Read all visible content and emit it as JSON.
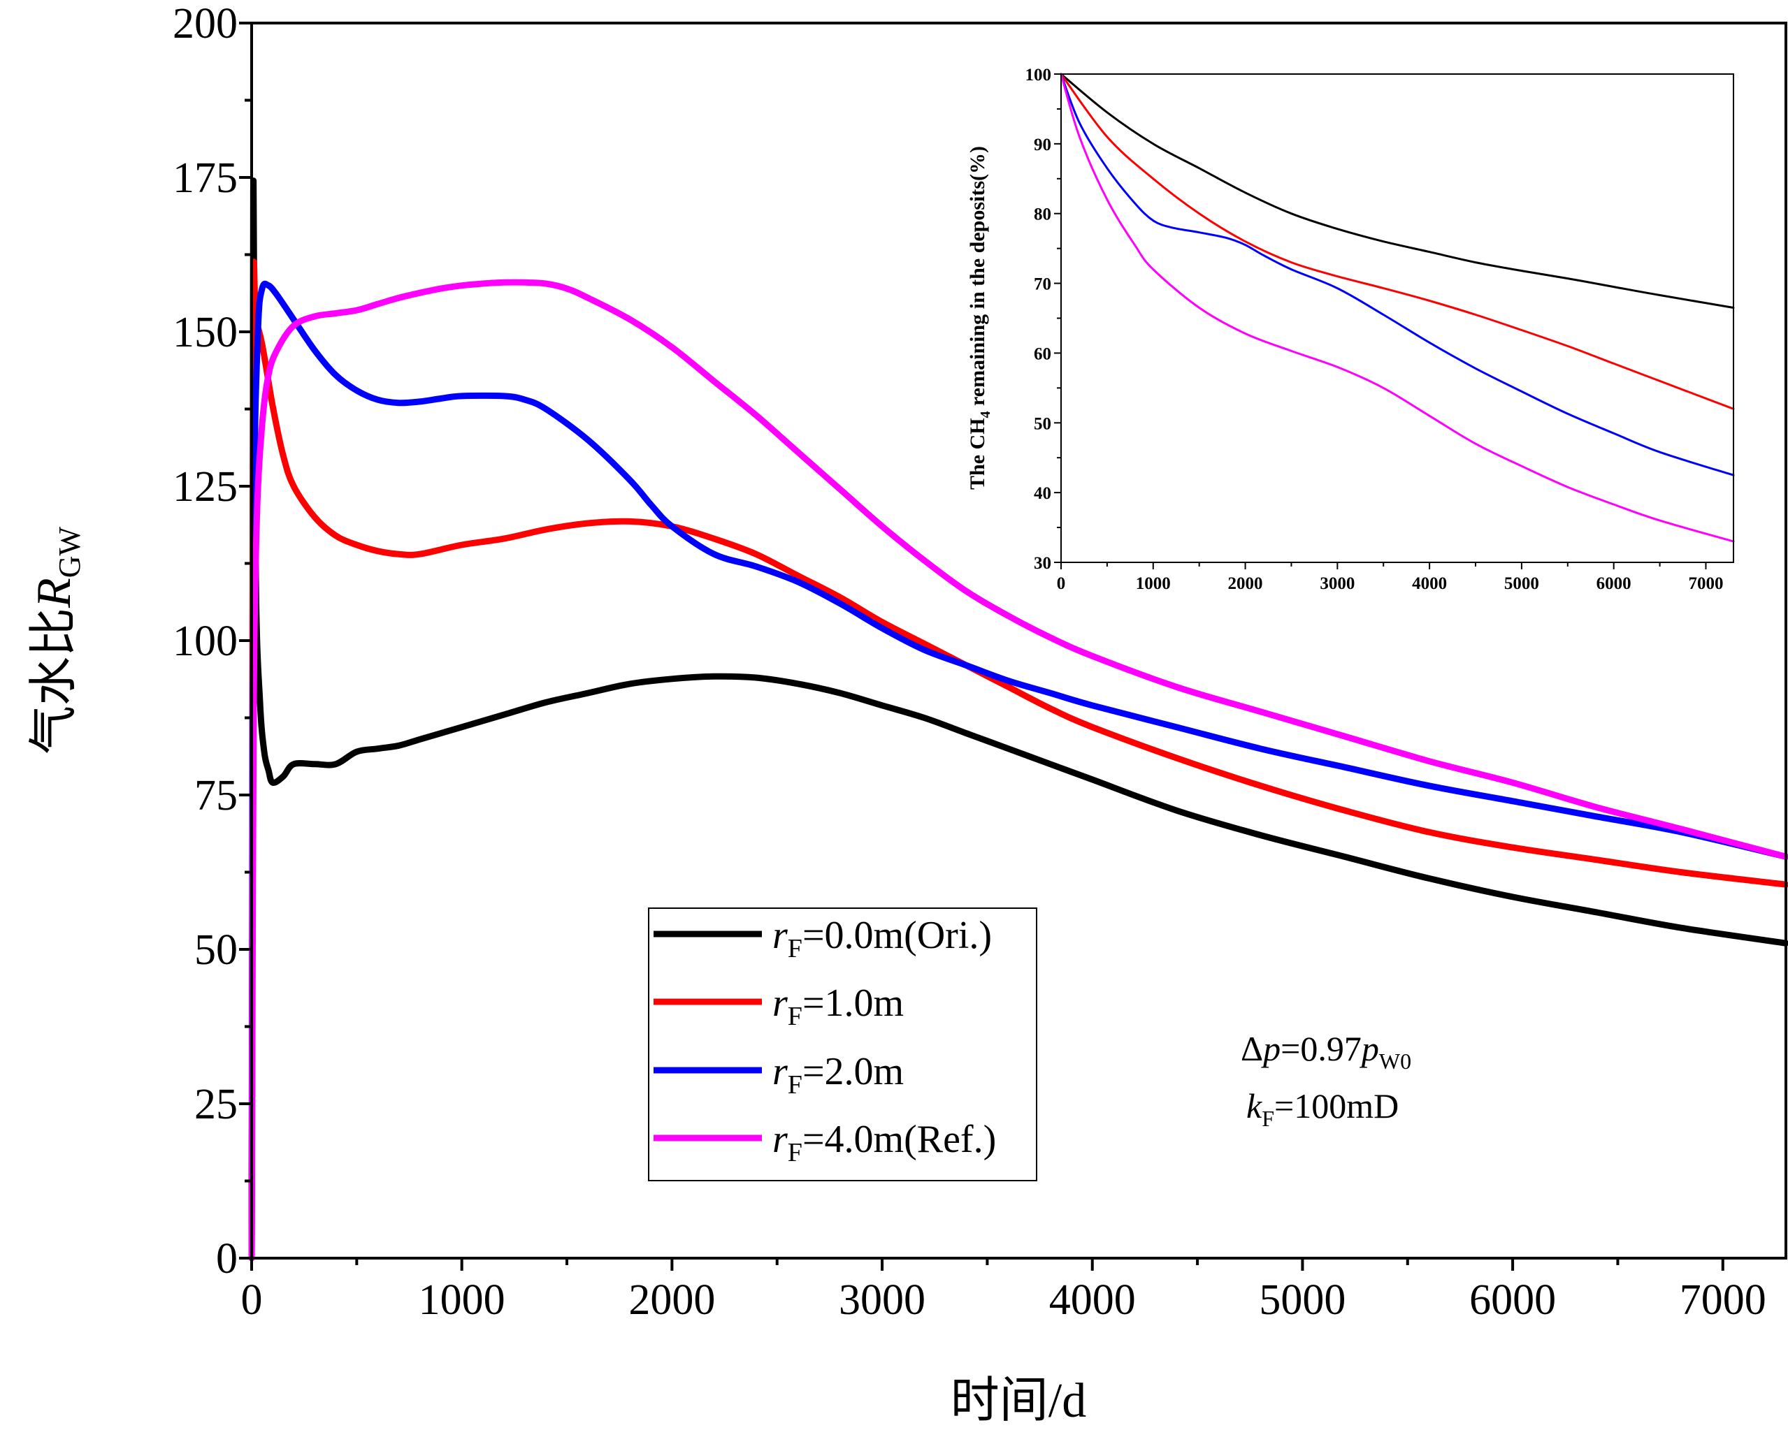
{
  "chart_data": [
    {
      "id": "main",
      "type": "line",
      "xlabel": "时间/d",
      "ylabel_main": "气水比",
      "ylabel_var": "R",
      "ylabel_sub": "GW",
      "xlim": [
        0,
        7300
      ],
      "ylim": [
        0,
        200
      ],
      "xticks": [
        0,
        1000,
        2000,
        3000,
        4000,
        5000,
        6000,
        7000
      ],
      "yticks": [
        0,
        25,
        50,
        75,
        100,
        125,
        150,
        175,
        200
      ],
      "legend": {
        "placement": "bottom-center"
      },
      "series": [
        {
          "name": "rF=0.0m(Ori.)",
          "label_var": "r",
          "label_sub": "F",
          "label_rest": "=0.0m(Ori.)",
          "color": "#000000",
          "points": [
            [
              0,
              0
            ],
            [
              3,
              40
            ],
            [
              8,
              173
            ],
            [
              20,
              110
            ],
            [
              40,
              90
            ],
            [
              60,
              82
            ],
            [
              80,
              79
            ],
            [
              100,
              77
            ],
            [
              150,
              78
            ],
            [
              200,
              80
            ],
            [
              300,
              80
            ],
            [
              400,
              80
            ],
            [
              500,
              82
            ],
            [
              600,
              82.5
            ],
            [
              700,
              83
            ],
            [
              800,
              84
            ],
            [
              1000,
              86
            ],
            [
              1200,
              88
            ],
            [
              1400,
              90
            ],
            [
              1600,
              91.5
            ],
            [
              1800,
              93
            ],
            [
              2000,
              93.8
            ],
            [
              2200,
              94.2
            ],
            [
              2400,
              94
            ],
            [
              2600,
              93
            ],
            [
              2800,
              91.5
            ],
            [
              3000,
              89.5
            ],
            [
              3200,
              87.5
            ],
            [
              3400,
              85
            ],
            [
              3600,
              82.5
            ],
            [
              3800,
              80
            ],
            [
              4000,
              77.5
            ],
            [
              4400,
              72.5
            ],
            [
              4800,
              68.5
            ],
            [
              5200,
              65
            ],
            [
              5600,
              61.5
            ],
            [
              6000,
              58.5
            ],
            [
              6400,
              56
            ],
            [
              6800,
              53.5
            ],
            [
              7300,
              51
            ]
          ]
        },
        {
          "name": "rF=1.0m",
          "label_var": "r",
          "label_sub": "F",
          "label_rest": "=1.0m",
          "color": "#ff0000",
          "points": [
            [
              0,
              0
            ],
            [
              3,
              60
            ],
            [
              8,
              155
            ],
            [
              20,
              152
            ],
            [
              50,
              148
            ],
            [
              100,
              138
            ],
            [
              150,
              130
            ],
            [
              200,
              125
            ],
            [
              300,
              120
            ],
            [
              400,
              117
            ],
            [
              500,
              115.5
            ],
            [
              600,
              114.5
            ],
            [
              700,
              114
            ],
            [
              800,
              114
            ],
            [
              1000,
              115.5
            ],
            [
              1200,
              116.5
            ],
            [
              1400,
              118
            ],
            [
              1600,
              119
            ],
            [
              1800,
              119.3
            ],
            [
              2000,
              118.5
            ],
            [
              2200,
              116.5
            ],
            [
              2400,
              114
            ],
            [
              2600,
              110.5
            ],
            [
              2800,
              107
            ],
            [
              3000,
              103
            ],
            [
              3200,
              99.5
            ],
            [
              3400,
              96
            ],
            [
              3600,
              92.5
            ],
            [
              3800,
              89
            ],
            [
              4000,
              86
            ],
            [
              4400,
              81
            ],
            [
              4800,
              76.5
            ],
            [
              5200,
              72.5
            ],
            [
              5600,
              69
            ],
            [
              6000,
              66.5
            ],
            [
              6400,
              64.5
            ],
            [
              6800,
              62.5
            ],
            [
              7300,
              60.5
            ]
          ]
        },
        {
          "name": "rF=2.0m",
          "label_var": "r",
          "label_sub": "F",
          "label_rest": "=2.0m",
          "color": "#0000ff",
          "points": [
            [
              0,
              0
            ],
            [
              3,
              50
            ],
            [
              10,
              120
            ],
            [
              30,
              150
            ],
            [
              50,
              157
            ],
            [
              80,
              157.5
            ],
            [
              120,
              156
            ],
            [
              200,
              152
            ],
            [
              300,
              147
            ],
            [
              400,
              143
            ],
            [
              500,
              140.5
            ],
            [
              600,
              139
            ],
            [
              700,
              138.5
            ],
            [
              800,
              138.7
            ],
            [
              900,
              139.2
            ],
            [
              1000,
              139.6
            ],
            [
              1200,
              139.6
            ],
            [
              1300,
              139
            ],
            [
              1400,
              137.5
            ],
            [
              1600,
              132.5
            ],
            [
              1800,
              126
            ],
            [
              1900,
              122
            ],
            [
              2000,
              118.5
            ],
            [
              2200,
              114
            ],
            [
              2400,
              112
            ],
            [
              2600,
              109.5
            ],
            [
              2800,
              106
            ],
            [
              3000,
              102
            ],
            [
              3200,
              98.5
            ],
            [
              3400,
              96
            ],
            [
              3600,
              93.5
            ],
            [
              3800,
              91.5
            ],
            [
              4000,
              89.5
            ],
            [
              4400,
              86
            ],
            [
              4800,
              82.5
            ],
            [
              5200,
              79.5
            ],
            [
              5600,
              76.5
            ],
            [
              6000,
              74
            ],
            [
              6400,
              71.5
            ],
            [
              6800,
              69
            ],
            [
              7300,
              65
            ]
          ]
        },
        {
          "name": "rF=4.0m(Ref.)",
          "label_var": "r",
          "label_sub": "F",
          "label_rest": "=4.0m(Ref.)",
          "color": "#ff00ff",
          "points": [
            [
              0,
              0
            ],
            [
              3,
              30
            ],
            [
              10,
              90
            ],
            [
              25,
              120
            ],
            [
              50,
              135
            ],
            [
              80,
              143
            ],
            [
              120,
              147
            ],
            [
              200,
              151
            ],
            [
              300,
              152.5
            ],
            [
              400,
              153
            ],
            [
              500,
              153.5
            ],
            [
              600,
              154.5
            ],
            [
              700,
              155.5
            ],
            [
              800,
              156.3
            ],
            [
              900,
              157
            ],
            [
              1000,
              157.5
            ],
            [
              1100,
              157.8
            ],
            [
              1200,
              158
            ],
            [
              1300,
              158
            ],
            [
              1400,
              157.8
            ],
            [
              1500,
              157
            ],
            [
              1600,
              155.5
            ],
            [
              1800,
              152
            ],
            [
              2000,
              147.5
            ],
            [
              2200,
              142
            ],
            [
              2400,
              136.5
            ],
            [
              2600,
              130.5
            ],
            [
              2800,
              124.5
            ],
            [
              3000,
              118.5
            ],
            [
              3200,
              113
            ],
            [
              3400,
              108
            ],
            [
              3600,
              104
            ],
            [
              3800,
              100.5
            ],
            [
              4000,
              97.5
            ],
            [
              4400,
              92.5
            ],
            [
              4800,
              88.5
            ],
            [
              5200,
              84.5
            ],
            [
              5600,
              80.5
            ],
            [
              6000,
              77
            ],
            [
              6400,
              73
            ],
            [
              6800,
              69.5
            ],
            [
              7300,
              65
            ]
          ]
        }
      ]
    },
    {
      "id": "inset",
      "type": "line",
      "ylabel_pre": "The CH",
      "ylabel_sub": "4",
      "ylabel_post": " remaining in the deposits(%)",
      "xlim": [
        0,
        7300
      ],
      "ylim": [
        30,
        100
      ],
      "xticks": [
        0,
        1000,
        2000,
        3000,
        4000,
        5000,
        6000,
        7000
      ],
      "yticks": [
        30,
        40,
        50,
        60,
        70,
        80,
        90,
        100
      ],
      "series": [
        {
          "name": "rF=0.0m(Ori.)",
          "color": "#000000",
          "points": [
            [
              0,
              100
            ],
            [
              500,
              94.5
            ],
            [
              1000,
              90
            ],
            [
              1500,
              86.5
            ],
            [
              2000,
              83
            ],
            [
              2500,
              80
            ],
            [
              3000,
              77.8
            ],
            [
              3500,
              76
            ],
            [
              4000,
              74.5
            ],
            [
              4500,
              73
            ],
            [
              5000,
              71.8
            ],
            [
              5500,
              70.7
            ],
            [
              6000,
              69.5
            ],
            [
              6500,
              68.3
            ],
            [
              7300,
              66.5
            ]
          ]
        },
        {
          "name": "rF=1.0m",
          "color": "#ff0000",
          "points": [
            [
              0,
              100
            ],
            [
              500,
              91
            ],
            [
              1000,
              85
            ],
            [
              1500,
              80
            ],
            [
              2000,
              76
            ],
            [
              2500,
              73
            ],
            [
              3000,
              71
            ],
            [
              3500,
              69.3
            ],
            [
              4000,
              67.5
            ],
            [
              4500,
              65.5
            ],
            [
              5000,
              63.3
            ],
            [
              5500,
              61
            ],
            [
              6000,
              58.5
            ],
            [
              6500,
              56
            ],
            [
              7300,
              52
            ]
          ]
        },
        {
          "name": "rF=2.0m",
          "color": "#0000ff",
          "points": [
            [
              0,
              100
            ],
            [
              200,
              93
            ],
            [
              500,
              86.5
            ],
            [
              800,
              81.5
            ],
            [
              1000,
              79
            ],
            [
              1200,
              78
            ],
            [
              1500,
              77.3
            ],
            [
              1800,
              76.5
            ],
            [
              2000,
              75.5
            ],
            [
              2200,
              74
            ],
            [
              2500,
              72
            ],
            [
              3000,
              69.3
            ],
            [
              3500,
              65.5
            ],
            [
              4000,
              61.5
            ],
            [
              4500,
              57.8
            ],
            [
              5000,
              54.5
            ],
            [
              5500,
              51.3
            ],
            [
              6000,
              48.5
            ],
            [
              6500,
              45.8
            ],
            [
              7300,
              42.5
            ]
          ]
        },
        {
          "name": "rF=4.0m(Ref.)",
          "color": "#ff00ff",
          "points": [
            [
              0,
              100
            ],
            [
              200,
              91
            ],
            [
              500,
              82
            ],
            [
              800,
              75.5
            ],
            [
              1000,
              72
            ],
            [
              1500,
              66.5
            ],
            [
              2000,
              62.8
            ],
            [
              2500,
              60.3
            ],
            [
              3000,
              58
            ],
            [
              3500,
              55
            ],
            [
              4000,
              51
            ],
            [
              4500,
              47
            ],
            [
              5000,
              43.8
            ],
            [
              5500,
              40.8
            ],
            [
              6000,
              38.3
            ],
            [
              6500,
              36
            ],
            [
              7300,
              33
            ]
          ]
        }
      ]
    }
  ],
  "annotation": {
    "line1_delta": "Δ",
    "line1_var": "p",
    "line1_eq": "=0.97",
    "line1_var2": "p",
    "line1_sub": "W0",
    "line2_var": "k",
    "line2_sub": "F",
    "line2_rest": "=100mD"
  }
}
